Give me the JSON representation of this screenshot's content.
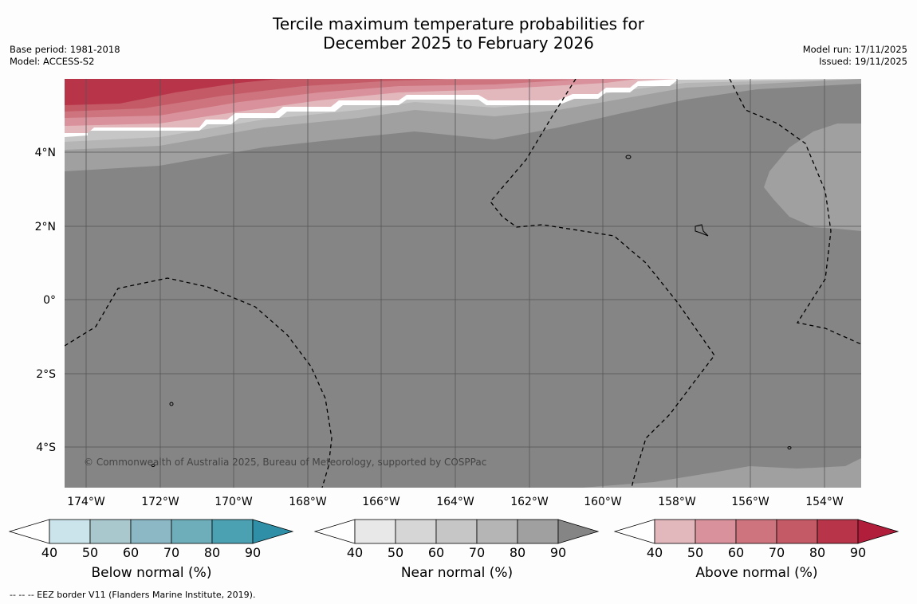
{
  "title": {
    "line1": "Tercile maximum temperature probabilities for",
    "line2": "December 2025 to February 2026"
  },
  "meta": {
    "base_period": "Base period: 1981-2018",
    "model": "Model: ACCESS-S2",
    "model_run": "Model run: 17/11/2025",
    "issued": "Issued: 19/11/2025"
  },
  "map": {
    "copyright": "© Commonwealth of Australia 2025, Bureau of Meteorology, supported by COSPPac",
    "lat_labels": [
      "4°N",
      "2°N",
      "0°",
      "2°S",
      "4°S"
    ],
    "lon_labels": [
      "174°W",
      "172°W",
      "170°W",
      "168°W",
      "166°W",
      "164°W",
      "162°W",
      "160°W",
      "158°W",
      "156°W",
      "154°W"
    ],
    "base_fill": "#858585"
  },
  "colorbars": [
    {
      "label": "Below normal (%)",
      "ticks": [
        "40",
        "50",
        "60",
        "70",
        "80",
        "90"
      ],
      "colors": [
        "#ffffff",
        "#cbe3ea",
        "#a8c8ce",
        "#8bb8c4",
        "#6eadba",
        "#4ba0b1",
        "#2e8fa6"
      ]
    },
    {
      "label": "Near normal (%)",
      "ticks": [
        "40",
        "50",
        "60",
        "70",
        "80",
        "90"
      ],
      "colors": [
        "#ffffff",
        "#e8e8e8",
        "#d6d6d6",
        "#c6c6c6",
        "#b5b5b5",
        "#a0a0a0",
        "#858585"
      ]
    },
    {
      "label": "Above normal (%)",
      "ticks": [
        "40",
        "50",
        "60",
        "70",
        "80",
        "90"
      ],
      "colors": [
        "#ffffff",
        "#e3b8bd",
        "#d9919b",
        "#cd747e",
        "#c45a66",
        "#b83449",
        "#b01e3c"
      ]
    }
  ],
  "footer": "--  --  -- EEZ border V11 (Flanders Marine Institute, 2019)."
}
